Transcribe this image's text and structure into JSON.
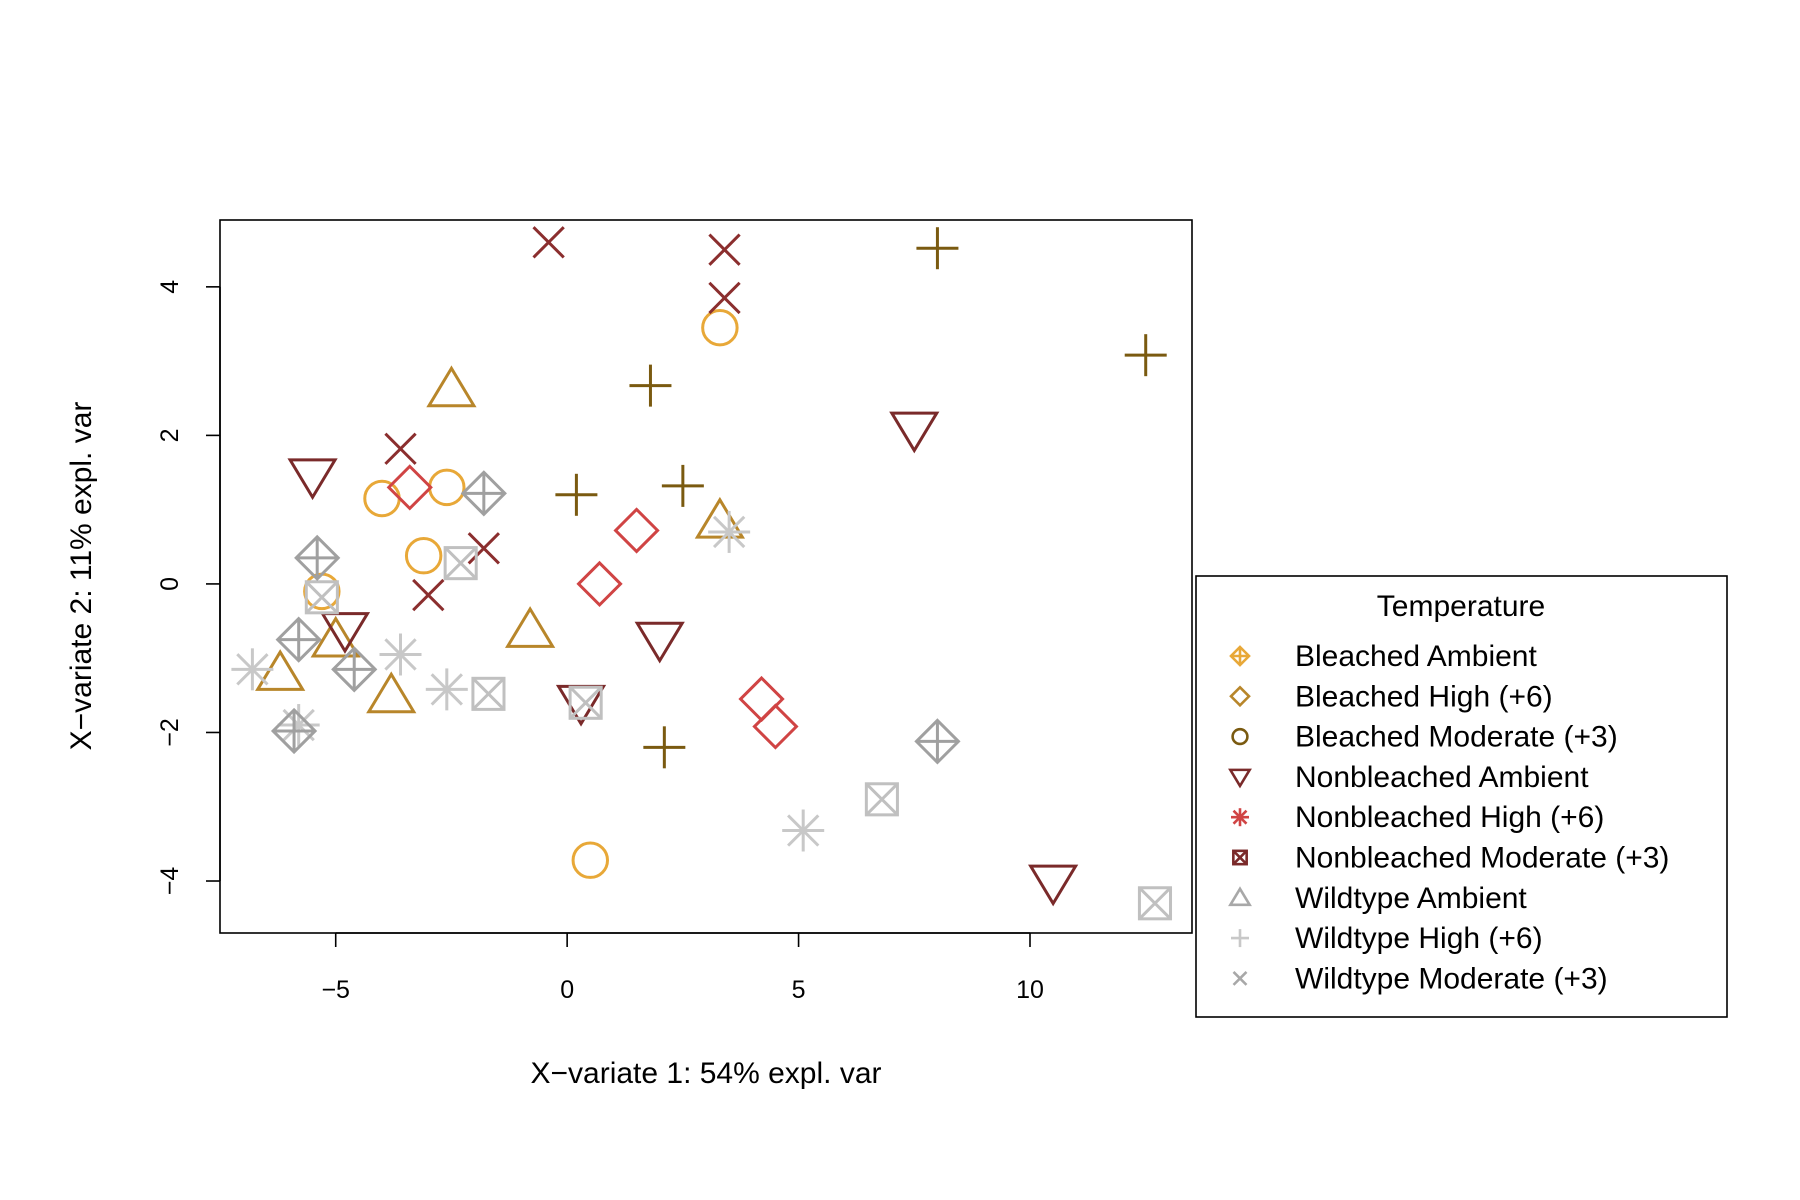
{
  "chart_data": {
    "type": "scatter",
    "xlabel": "X−variate 1: 54% expl. var",
    "ylabel": "X−variate 2: 11% expl. var",
    "xlim": [
      -7.5,
      13.5
    ],
    "ylim": [
      -4.7,
      4.9
    ],
    "x_ticks": [
      {
        "value": -5,
        "label": "−5"
      },
      {
        "value": 0,
        "label": "0"
      },
      {
        "value": 5,
        "label": "5"
      },
      {
        "value": 10,
        "label": "10"
      }
    ],
    "y_ticks": [
      {
        "value": -4,
        "label": "−4"
      },
      {
        "value": -2,
        "label": "−2"
      },
      {
        "value": 0,
        "label": "0"
      },
      {
        "value": 2,
        "label": "2"
      },
      {
        "value": 4,
        "label": "4"
      }
    ],
    "grid": false,
    "legend": {
      "title": "Temperature",
      "placement": "right-bottom, outside plot"
    },
    "series": [
      {
        "name": "Bleached Ambient",
        "symbol": "circle",
        "color": "#E8A838",
        "points": [
          [
            3.3,
            3.45
          ],
          [
            -4.0,
            1.15
          ],
          [
            -2.6,
            1.3
          ],
          [
            -3.1,
            0.38
          ],
          [
            -5.3,
            -0.1
          ],
          [
            0.5,
            -3.72
          ]
        ]
      },
      {
        "name": "Bleached High (+6)",
        "symbol": "triangle-up",
        "color": "#B8862A",
        "points": [
          [
            -2.5,
            2.62
          ],
          [
            3.3,
            0.85
          ],
          [
            -0.8,
            -0.62
          ],
          [
            -5.0,
            -0.75
          ],
          [
            -6.2,
            -1.2
          ],
          [
            -3.8,
            -1.5
          ]
        ]
      },
      {
        "name": "Bleached Moderate (+3)",
        "symbol": "plus",
        "color": "#7A5A10",
        "points": [
          [
            8.0,
            4.52
          ],
          [
            12.5,
            3.08
          ],
          [
            1.8,
            2.67
          ],
          [
            0.2,
            1.2
          ],
          [
            2.5,
            1.32
          ],
          [
            2.1,
            -2.2
          ]
        ]
      },
      {
        "name": "Nonbleached Ambient",
        "symbol": "triangle-down",
        "color": "#7A2A2A",
        "points": [
          [
            -5.5,
            1.45
          ],
          [
            7.5,
            2.08
          ],
          [
            -4.8,
            -0.62
          ],
          [
            2.0,
            -0.75
          ],
          [
            0.3,
            -1.6
          ],
          [
            10.5,
            -4.02
          ]
        ]
      },
      {
        "name": "Nonbleached High (+6)",
        "symbol": "diamond",
        "color": "#D04444",
        "points": [
          [
            -3.4,
            1.3
          ],
          [
            1.5,
            0.72
          ],
          [
            0.7,
            0.0
          ],
          [
            4.2,
            -1.55
          ],
          [
            4.5,
            -1.92
          ]
        ]
      },
      {
        "name": "Nonbleached Moderate (+3)",
        "symbol": "x",
        "color": "#8B2E2E",
        "points": [
          [
            -0.4,
            4.6
          ],
          [
            3.4,
            4.5
          ],
          [
            3.4,
            3.85
          ],
          [
            -3.6,
            1.82
          ],
          [
            -1.8,
            0.48
          ],
          [
            -3.0,
            -0.15
          ]
        ]
      },
      {
        "name": "Wildtype Ambient",
        "symbol": "x-square",
        "color": "#C0C0C0",
        "points": [
          [
            -5.3,
            -0.18
          ],
          [
            -2.3,
            0.28
          ],
          [
            -1.7,
            -1.48
          ],
          [
            0.4,
            -1.6
          ],
          [
            6.8,
            -2.9
          ],
          [
            12.7,
            -4.3
          ]
        ]
      },
      {
        "name": "Wildtype High (+6)",
        "symbol": "asterisk",
        "color": "#C8C8C8",
        "points": [
          [
            3.5,
            0.7
          ],
          [
            -3.6,
            -0.95
          ],
          [
            -6.8,
            -1.15
          ],
          [
            -2.6,
            -1.42
          ],
          [
            -5.8,
            -1.9
          ],
          [
            5.1,
            -3.32
          ]
        ]
      },
      {
        "name": "Wildtype Moderate (+3)",
        "symbol": "diamond-plus",
        "color": "#A0A0A0",
        "points": [
          [
            -1.8,
            1.22
          ],
          [
            -5.4,
            0.35
          ],
          [
            -5.8,
            -0.75
          ],
          [
            -4.6,
            -1.15
          ],
          [
            -5.9,
            -1.98
          ],
          [
            8.0,
            -2.12
          ]
        ]
      }
    ],
    "legend_entries": [
      {
        "label": "Bleached Ambient",
        "symbol": "diamond-plus",
        "color": "#E8A838"
      },
      {
        "label": "Bleached High (+6)",
        "symbol": "diamond",
        "color": "#B8862A"
      },
      {
        "label": "Bleached Moderate (+3)",
        "symbol": "circle",
        "color": "#7A5A10"
      },
      {
        "label": "Nonbleached Ambient",
        "symbol": "triangle-down",
        "color": "#7A2A2A"
      },
      {
        "label": "Nonbleached High (+6)",
        "symbol": "asterisk",
        "color": "#D04444"
      },
      {
        "label": "Nonbleached Moderate (+3)",
        "symbol": "x-square",
        "color": "#7A2A2A"
      },
      {
        "label": "Wildtype Ambient",
        "symbol": "triangle-up",
        "color": "#A8A8A8"
      },
      {
        "label": "Wildtype High (+6)",
        "symbol": "plus",
        "color": "#C8C8C8"
      },
      {
        "label": "Wildtype Moderate (+3)",
        "symbol": "x",
        "color": "#A8A8A8"
      }
    ]
  }
}
